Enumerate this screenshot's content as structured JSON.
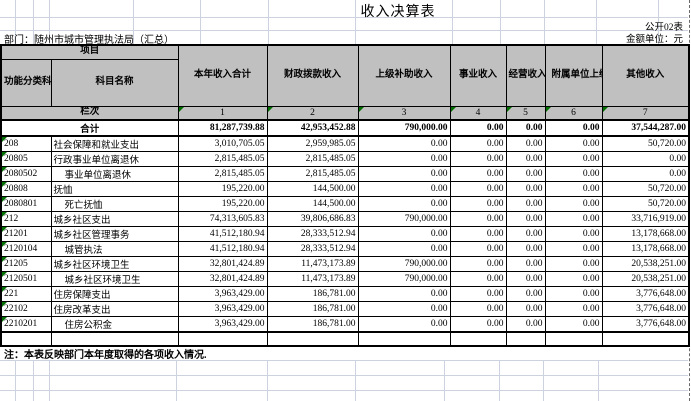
{
  "page": {
    "title": "收入决算表",
    "form_code": "公开02表",
    "department_label": "部门：随州市城市管理执法局（汇总）",
    "unit_label": "金额单位：元",
    "note": "注：本表反映部门本年度取得的各项收入情况."
  },
  "table": {
    "header": {
      "item_group": "项目",
      "code_label": "功能分类科目编码",
      "name_label": "科目名称",
      "columns": [
        "本年收入合计",
        "财政拨款收入",
        "上级补助收入",
        "事业收入",
        "经营收入",
        "附属单位上缴收入",
        "其他收入"
      ]
    },
    "lanci": {
      "label": "栏次",
      "numbers": [
        "1",
        "2",
        "3",
        "4",
        "5",
        "6",
        "7"
      ]
    },
    "total_row": {
      "label": "合计",
      "values": [
        "81,287,739.88",
        "42,953,452.88",
        "790,000.00",
        "0.00",
        "0.00",
        "0.00",
        "37,544,287.00"
      ]
    },
    "rows": [
      {
        "code": "208",
        "name": "社会保障和就业支出",
        "indent": 0,
        "values": [
          "3,010,705.05",
          "2,959,985.05",
          "0.00",
          "0.00",
          "0.00",
          "0.00",
          "50,720.00"
        ]
      },
      {
        "code": "20805",
        "name": "行政事业单位离退休",
        "indent": 0,
        "values": [
          "2,815,485.05",
          "2,815,485.05",
          "0.00",
          "0.00",
          "0.00",
          "0.00",
          "0.00"
        ]
      },
      {
        "code": "2080502",
        "name": "事业单位离退休",
        "indent": 1,
        "values": [
          "2,815,485.05",
          "2,815,485.05",
          "0.00",
          "0.00",
          "0.00",
          "0.00",
          "0.00"
        ]
      },
      {
        "code": "20808",
        "name": "抚恤",
        "indent": 0,
        "values": [
          "195,220.00",
          "144,500.00",
          "0.00",
          "0.00",
          "0.00",
          "0.00",
          "50,720.00"
        ]
      },
      {
        "code": "2080801",
        "name": "死亡抚恤",
        "indent": 1,
        "values": [
          "195,220.00",
          "144,500.00",
          "0.00",
          "0.00",
          "0.00",
          "0.00",
          "50,720.00"
        ]
      },
      {
        "code": "212",
        "name": "城乡社区支出",
        "indent": 0,
        "values": [
          "74,313,605.83",
          "39,806,686.83",
          "790,000.00",
          "0.00",
          "0.00",
          "0.00",
          "33,716,919.00"
        ]
      },
      {
        "code": "21201",
        "name": "城乡社区管理事务",
        "indent": 0,
        "values": [
          "41,512,180.94",
          "28,333,512.94",
          "0.00",
          "0.00",
          "0.00",
          "0.00",
          "13,178,668.00"
        ]
      },
      {
        "code": "2120104",
        "name": "城管执法",
        "indent": 1,
        "values": [
          "41,512,180.94",
          "28,333,512.94",
          "0.00",
          "0.00",
          "0.00",
          "0.00",
          "13,178,668.00"
        ]
      },
      {
        "code": "21205",
        "name": "城乡社区环境卫生",
        "indent": 0,
        "values": [
          "32,801,424.89",
          "11,473,173.89",
          "790,000.00",
          "0.00",
          "0.00",
          "0.00",
          "20,538,251.00"
        ]
      },
      {
        "code": "2120501",
        "name": "城乡社区环境卫生",
        "indent": 1,
        "values": [
          "32,801,424.89",
          "11,473,173.89",
          "790,000.00",
          "0.00",
          "0.00",
          "0.00",
          "20,538,251.00"
        ]
      },
      {
        "code": "221",
        "name": "住房保障支出",
        "indent": 0,
        "values": [
          "3,963,429.00",
          "186,781.00",
          "0.00",
          "0.00",
          "0.00",
          "0.00",
          "3,776,648.00"
        ]
      },
      {
        "code": "22102",
        "name": "住房改革支出",
        "indent": 0,
        "values": [
          "3,963,429.00",
          "186,781.00",
          "0.00",
          "0.00",
          "0.00",
          "0.00",
          "3,776,648.00"
        ]
      },
      {
        "code": "2210201",
        "name": "住房公积金",
        "indent": 1,
        "values": [
          "3,963,429.00",
          "186,781.00",
          "0.00",
          "0.00",
          "0.00",
          "0.00",
          "3,776,648.00"
        ]
      }
    ]
  },
  "colors": {
    "header_bg": "#c0c0c0",
    "flag_triangle": "#017001",
    "gridline": "#ccd3df"
  }
}
